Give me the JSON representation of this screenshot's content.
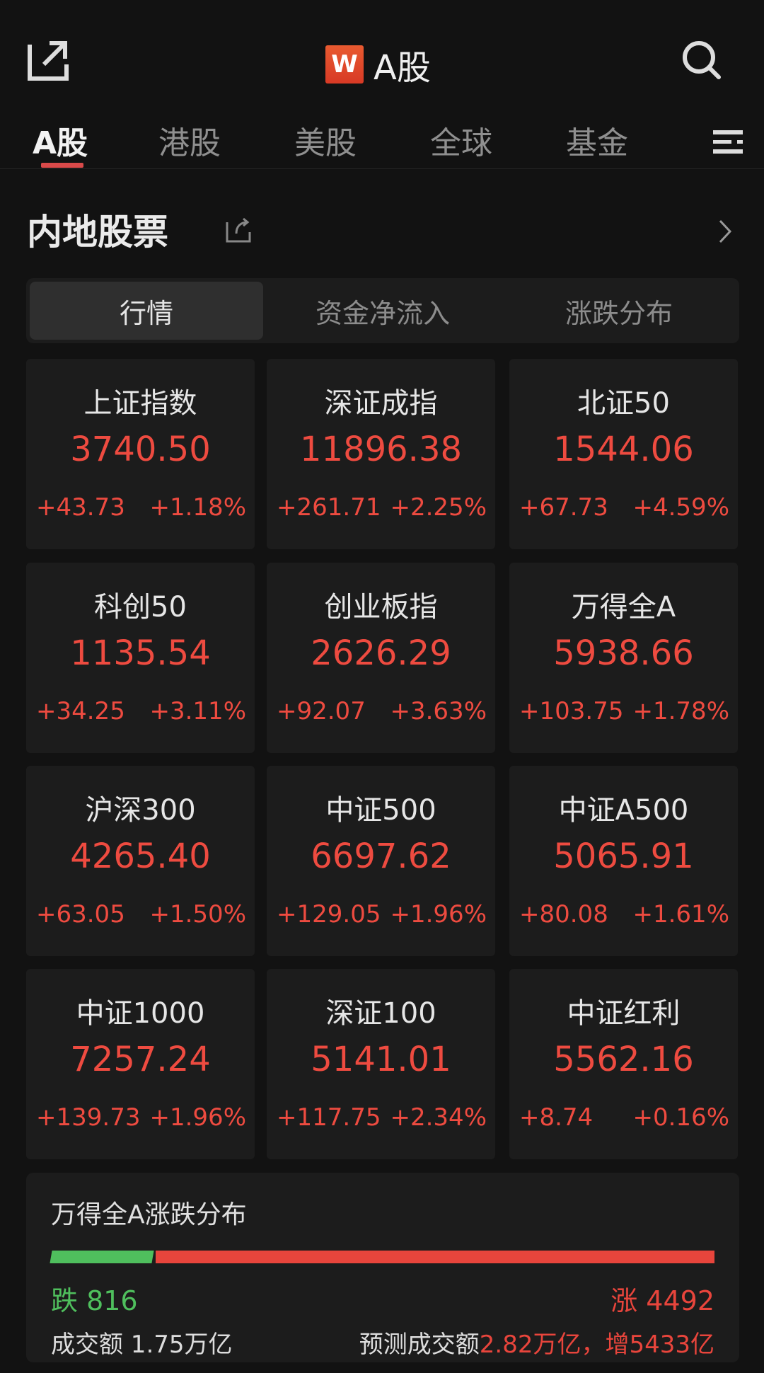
{
  "header": {
    "title": "A股",
    "logo_letter": "W",
    "icons": [
      "share-icon",
      "search-icon"
    ]
  },
  "tabs": [
    {
      "label": "A股",
      "active": true
    },
    {
      "label": "港股"
    },
    {
      "label": "美股"
    },
    {
      "label": "全球"
    },
    {
      "label": "基金"
    }
  ],
  "section": {
    "title": "内地股票"
  },
  "segments": [
    {
      "label": "行情",
      "active": true
    },
    {
      "label": "资金净流入"
    },
    {
      "label": "涨跌分布"
    }
  ],
  "indices": [
    {
      "name": "上证指数",
      "value": "3740.50",
      "change": "+43.73",
      "pct": "+1.18%"
    },
    {
      "name": "深证成指",
      "value": "11896.38",
      "change": "+261.71",
      "pct": "+2.25%"
    },
    {
      "name": "北证50",
      "value": "1544.06",
      "change": "+67.73",
      "pct": "+4.59%"
    },
    {
      "name": "科创50",
      "value": "1135.54",
      "change": "+34.25",
      "pct": "+3.11%"
    },
    {
      "name": "创业板指",
      "value": "2626.29",
      "change": "+92.07",
      "pct": "+3.63%"
    },
    {
      "name": "万得全A",
      "value": "5938.66",
      "change": "+103.75",
      "pct": "+1.78%"
    },
    {
      "name": "沪深300",
      "value": "4265.40",
      "change": "+63.05",
      "pct": "+1.50%"
    },
    {
      "name": "中证500",
      "value": "6697.62",
      "change": "+129.05",
      "pct": "+1.96%"
    },
    {
      "name": "中证A500",
      "value": "5065.91",
      "change": "+80.08",
      "pct": "+1.61%"
    },
    {
      "name": "中证1000",
      "value": "7257.24",
      "change": "+139.73",
      "pct": "+1.96%"
    },
    {
      "name": "深证100",
      "value": "5141.01",
      "change": "+117.75",
      "pct": "+2.34%"
    },
    {
      "name": "中证红利",
      "value": "5562.16",
      "change": "+8.74",
      "pct": "+0.16%"
    }
  ],
  "distribution": {
    "title": "万得全A涨跌分布",
    "down_label": "跌 816",
    "up_label": "涨 4492",
    "down": 816,
    "up": 4492,
    "turnover": "成交额 1.75万亿",
    "forecast_label": "预测成交额",
    "forecast_value": "2.82万亿，增5433亿"
  },
  "colors": {
    "up": "#e8453c",
    "down": "#4fbf5d",
    "background": "#121212",
    "card": "#1c1c1c"
  }
}
